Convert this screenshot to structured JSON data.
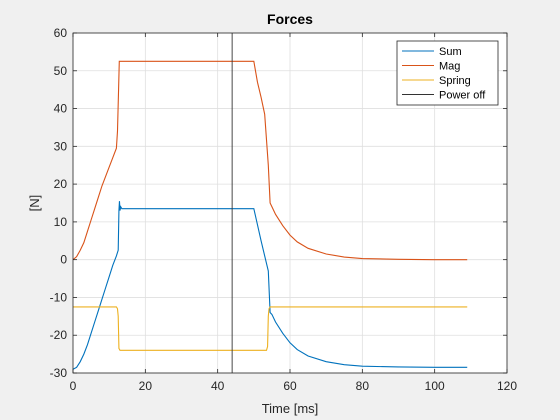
{
  "chart_data": {
    "type": "line",
    "title": "Forces",
    "xlabel": "Time [ms]",
    "ylabel": "[N]",
    "xlim": [
      0,
      120
    ],
    "ylim": [
      -30,
      60
    ],
    "xticks": [
      0,
      20,
      40,
      60,
      80,
      100,
      120
    ],
    "yticks": [
      -30,
      -20,
      -10,
      0,
      10,
      20,
      30,
      40,
      50,
      60
    ],
    "grid": true,
    "legend_position": "top-right",
    "series": [
      {
        "name": "Sum",
        "color": "#0072bd",
        "points": [
          [
            0,
            -29
          ],
          [
            1,
            -28.5
          ],
          [
            2,
            -27
          ],
          [
            3,
            -25
          ],
          [
            4,
            -22.5
          ],
          [
            5,
            -19.5
          ],
          [
            6,
            -16.5
          ],
          [
            7,
            -13.5
          ],
          [
            8,
            -10.5
          ],
          [
            9,
            -7.5
          ],
          [
            10,
            -4.5
          ],
          [
            11,
            -1.5
          ],
          [
            12,
            1
          ],
          [
            12.5,
            2.5
          ],
          [
            12.7,
            13
          ],
          [
            12.85,
            15.5
          ],
          [
            13,
            13
          ],
          [
            13.2,
            14
          ],
          [
            13.5,
            13.5
          ],
          [
            20,
            13.5
          ],
          [
            30,
            13.5
          ],
          [
            40,
            13.5
          ],
          [
            45,
            13.5
          ],
          [
            50,
            13.5
          ],
          [
            52,
            5
          ],
          [
            54,
            -3
          ],
          [
            54.5,
            -14
          ],
          [
            55,
            -14.5
          ],
          [
            56,
            -16.5
          ],
          [
            58,
            -19.5
          ],
          [
            60,
            -22
          ],
          [
            62,
            -23.8
          ],
          [
            65,
            -25.5
          ],
          [
            70,
            -27
          ],
          [
            75,
            -27.8
          ],
          [
            80,
            -28.2
          ],
          [
            90,
            -28.4
          ],
          [
            100,
            -28.5
          ],
          [
            109,
            -28.5
          ]
        ]
      },
      {
        "name": "Mag",
        "color": "#d95319",
        "points": [
          [
            0,
            0
          ],
          [
            1,
            0.8
          ],
          [
            2,
            2.5
          ],
          [
            3,
            4.5
          ],
          [
            4,
            7.5
          ],
          [
            5,
            10.5
          ],
          [
            6,
            13.5
          ],
          [
            7,
            16.5
          ],
          [
            8,
            19.5
          ],
          [
            9,
            22
          ],
          [
            10,
            24.5
          ],
          [
            11,
            27
          ],
          [
            12,
            29.5
          ],
          [
            12.3,
            34
          ],
          [
            12.6,
            45
          ],
          [
            12.8,
            52.5
          ],
          [
            20,
            52.5
          ],
          [
            30,
            52.5
          ],
          [
            40,
            52.5
          ],
          [
            50,
            52.5
          ],
          [
            51,
            47
          ],
          [
            52,
            43
          ],
          [
            53,
            38.5
          ],
          [
            54,
            25
          ],
          [
            54.5,
            15
          ],
          [
            55,
            14
          ],
          [
            56,
            12
          ],
          [
            58,
            9
          ],
          [
            60,
            6.5
          ],
          [
            62,
            4.7
          ],
          [
            65,
            3
          ],
          [
            70,
            1.5
          ],
          [
            75,
            0.7
          ],
          [
            80,
            0.3
          ],
          [
            90,
            0.1
          ],
          [
            100,
            0
          ],
          [
            109,
            0
          ]
        ]
      },
      {
        "name": "Spring",
        "color": "#edb120",
        "points": [
          [
            0,
            -12.5
          ],
          [
            12,
            -12.5
          ],
          [
            12.3,
            -13
          ],
          [
            12.5,
            -15
          ],
          [
            12.7,
            -23.5
          ],
          [
            13,
            -24
          ],
          [
            20,
            -24
          ],
          [
            40,
            -24
          ],
          [
            50,
            -24
          ],
          [
            53.5,
            -24
          ],
          [
            53.8,
            -23
          ],
          [
            54,
            -15
          ],
          [
            54.2,
            -13
          ],
          [
            54.5,
            -12.5
          ],
          [
            60,
            -12.5
          ],
          [
            80,
            -12.5
          ],
          [
            100,
            -12.5
          ],
          [
            109,
            -12.5
          ]
        ]
      },
      {
        "name": "Power off",
        "color": "#333333",
        "points": [
          [
            44,
            -30
          ],
          [
            44,
            60
          ]
        ]
      }
    ]
  }
}
